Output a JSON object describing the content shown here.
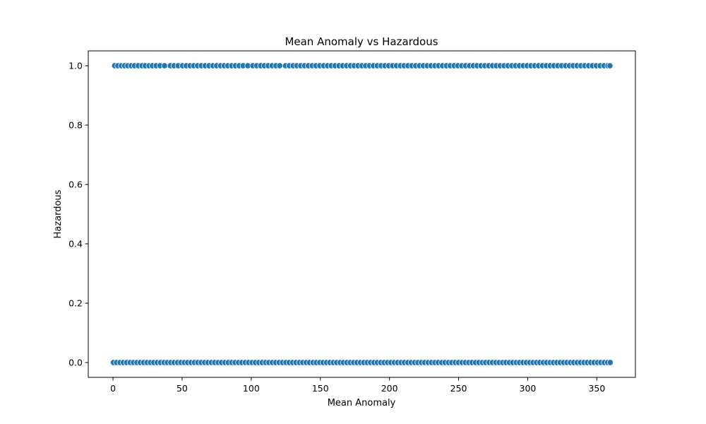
{
  "chart_data": {
    "type": "scatter",
    "title": "Mean Anomaly vs Hazardous",
    "xlabel": "Mean Anomaly",
    "ylabel": "Hazardous",
    "xlim": [
      -17.9,
      377.9
    ],
    "ylim": [
      -0.05,
      1.05
    ],
    "xticks": [
      0,
      50,
      100,
      150,
      200,
      250,
      300,
      350
    ],
    "xtick_labels": [
      "0",
      "50",
      "100",
      "150",
      "200",
      "250",
      "300",
      "350"
    ],
    "yticks": [
      0.0,
      0.2,
      0.4,
      0.6,
      0.8,
      1.0
    ],
    "ytick_labels": [
      "0.0",
      "0.2",
      "0.4",
      "0.6",
      "0.8",
      "1.0"
    ],
    "grid": false,
    "legend": "none",
    "color": "#1f77b4",
    "series": [
      {
        "y": 1,
        "x": [
          1.2,
          3.5,
          6.1,
          8.4,
          10.7,
          13.2,
          15.6,
          18.3,
          21.0,
          23.4,
          26.1,
          28.5,
          31.2,
          34.0,
          37.3,
          41.5,
          44.2,
          47.1,
          50.3,
          53.0,
          55.8,
          58.4,
          61.2,
          63.9,
          66.7,
          69.5,
          72.3,
          75.0,
          77.8,
          80.5,
          83.1,
          85.9,
          88.6,
          91.3,
          94.1,
          97.5,
          101.2,
          104.0,
          106.8,
          109.5,
          112.3,
          115.1,
          117.9,
          120.6,
          124.8,
          127.5,
          130.3,
          133.0,
          135.8,
          138.6,
          141.3,
          144.1,
          146.8,
          149.6,
          152.4,
          155.2,
          157.9,
          160.7,
          163.5,
          166.2,
          169.0,
          171.8,
          174.5,
          177.3,
          180.1,
          182.8,
          185.6,
          188.4,
          191.2,
          194.0,
          196.7,
          199.5,
          202.3,
          205.1,
          207.9,
          210.6,
          213.4,
          216.2,
          219.0,
          221.7,
          224.5,
          227.3,
          230.1,
          232.9,
          235.6,
          238.4,
          241.2,
          244.0,
          246.8,
          249.5,
          252.3,
          255.1,
          257.9,
          260.7,
          263.4,
          266.2,
          269.0,
          271.8,
          274.6,
          277.3,
          280.1,
          282.9,
          285.7,
          288.5,
          291.2,
          294.0,
          296.8,
          299.6,
          302.4,
          305.1,
          307.9,
          310.7,
          313.5,
          316.3,
          319.0,
          321.8,
          324.6,
          327.4,
          330.2,
          332.9,
          335.7,
          338.5,
          341.3,
          344.1,
          346.8,
          349.6,
          352.4,
          355.2,
          358.0,
          359.5
        ]
      },
      {
        "y": 0,
        "x": [
          0.3,
          2.6,
          5.1,
          7.5,
          9.9,
          12.4,
          14.8,
          17.3,
          19.7,
          22.2,
          24.6,
          27.1,
          29.5,
          32.0,
          34.4,
          36.9,
          39.3,
          41.8,
          44.2,
          46.7,
          49.1,
          51.6,
          54.0,
          56.5,
          58.9,
          61.4,
          63.8,
          66.3,
          68.7,
          71.2,
          73.6,
          76.1,
          78.5,
          81.0,
          83.4,
          85.9,
          88.3,
          90.8,
          93.2,
          95.7,
          98.1,
          100.6,
          103.0,
          105.5,
          107.9,
          110.4,
          112.8,
          115.3,
          117.7,
          120.2,
          122.6,
          125.1,
          127.5,
          130.0,
          132.4,
          134.9,
          137.3,
          139.8,
          142.2,
          144.7,
          147.1,
          149.6,
          152.0,
          154.5,
          156.9,
          159.4,
          161.8,
          164.3,
          166.7,
          169.2,
          171.6,
          174.1,
          176.5,
          179.0,
          181.4,
          183.9,
          186.3,
          188.8,
          191.2,
          193.7,
          196.1,
          198.6,
          201.0,
          203.5,
          205.9,
          208.4,
          210.8,
          213.3,
          215.7,
          218.2,
          220.6,
          223.1,
          225.5,
          228.0,
          230.4,
          232.9,
          235.3,
          237.8,
          240.2,
          242.7,
          245.1,
          247.6,
          250.0,
          252.5,
          254.9,
          257.4,
          259.8,
          262.3,
          264.7,
          267.2,
          269.6,
          272.1,
          274.5,
          277.0,
          279.4,
          281.9,
          284.3,
          286.8,
          289.2,
          291.7,
          294.1,
          296.6,
          299.0,
          301.5,
          303.9,
          306.4,
          308.8,
          311.3,
          313.7,
          316.2,
          318.6,
          321.1,
          323.5,
          326.0,
          328.4,
          330.9,
          333.3,
          335.8,
          338.2,
          340.7,
          343.1,
          345.6,
          348.0,
          350.5,
          352.9,
          355.4,
          357.8,
          359.7
        ]
      }
    ]
  }
}
